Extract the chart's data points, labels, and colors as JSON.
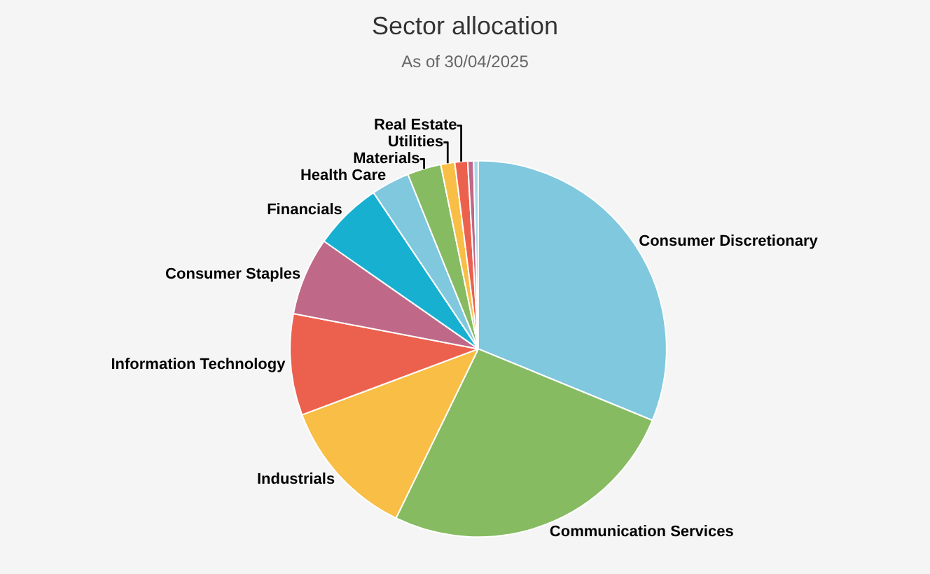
{
  "chart_data": {
    "type": "pie",
    "title": "Sector allocation",
    "subtitle": "As of 30/04/2025",
    "categories": [
      "Consumer Discretionary",
      "Communication Services",
      "Industrials",
      "Information Technology",
      "Consumer Staples",
      "Financials",
      "Health Care",
      "Materials",
      "Utilities",
      "Real Estate",
      null,
      null
    ],
    "values": [
      31.2,
      26.0,
      12.1,
      8.7,
      6.7,
      5.9,
      3.3,
      2.9,
      1.2,
      1.1,
      0.5,
      0.4
    ],
    "colors": [
      "#7fc8dd",
      "#87bb62",
      "#f8be45",
      "#ec614d",
      "#c06887",
      "#18b0d0",
      "#7fc8dd",
      "#87bb62",
      "#f8be45",
      "#ec614d",
      "#c06887",
      "#a6d9e8"
    ],
    "legend": false
  }
}
